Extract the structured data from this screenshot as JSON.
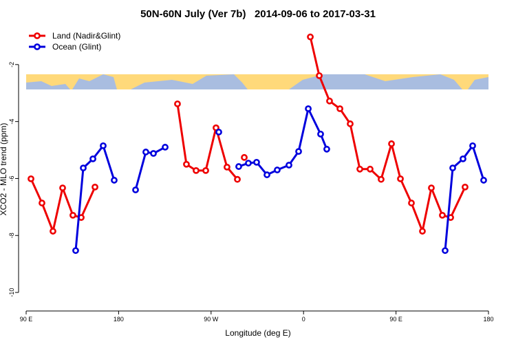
{
  "chart_data": {
    "type": "line",
    "title": "50N-60N July (Ver 7b)   2014-09-06 to 2017-03-31",
    "x_label": "Longitude (deg E)",
    "y_label": "XCO2 - MLO trend (ppm)",
    "xlim": [
      90,
      540
    ],
    "xticks": [
      {
        "value": 90,
        "label": "90 E"
      },
      {
        "value": 180,
        "label": "180"
      },
      {
        "value": 270,
        "label": "90 W"
      },
      {
        "value": 360,
        "label": "0"
      },
      {
        "value": 450,
        "label": "90 E"
      },
      {
        "value": 540,
        "label": "180"
      }
    ],
    "ylim": [
      -10.65,
      -0.7
    ],
    "yticks": [
      -2,
      -4,
      -6,
      -8,
      -10
    ],
    "legend": "top-left",
    "series": [
      {
        "name": "Land (Nadir&Glint)",
        "color": "#ee0000",
        "x": [
          94.7,
          105.4,
          116.1,
          125.5,
          135.5,
          143.6,
          157,
          null,
          237.3,
          246,
          255.4,
          264.8,
          274.8,
          285.5,
          295.6,
          null,
          302.3,
          null,
          366.6,
          375.3,
          385.3,
          395.4,
          405.4,
          414.8,
          424.8,
          435.5,
          445.6,
          454.3,
          465,
          475.7,
          484.4,
          495.1,
          503.2,
          517.2
        ],
        "values": [
          -6.01,
          -6.86,
          -7.85,
          -6.33,
          -7.29,
          -7.37,
          -6.3,
          null,
          -3.38,
          -5.5,
          -5.72,
          -5.72,
          -4.22,
          -5.6,
          -6.03,
          null,
          -5.26,
          null,
          -1.03,
          -2.39,
          -3.28,
          -3.55,
          -4.08,
          -5.67,
          -5.67,
          -6.03,
          -4.78,
          -6.01,
          -6.86,
          -7.85,
          -6.33,
          -7.29,
          -7.37,
          -6.3
        ]
      },
      {
        "name": "Ocean (Glint)",
        "color": "#0000dd",
        "x": [
          138.2,
          145.6,
          155,
          165,
          175.7,
          null,
          196.5,
          206.5,
          213.9,
          225.3,
          null,
          277.5,
          null,
          296.9,
          306.3,
          314.3,
          324.4,
          334.4,
          345.8,
          355.2,
          364.6,
          376.6,
          382.6,
          null,
          497.8,
          505.2,
          515.2,
          524.6,
          535.3
        ],
        "values": [
          -8.53,
          -5.63,
          -5.31,
          -4.85,
          -6.06,
          null,
          -6.4,
          -5.07,
          -5.12,
          -4.9,
          null,
          -4.37,
          null,
          -5.58,
          -5.46,
          -5.43,
          -5.87,
          -5.7,
          -5.53,
          -5.05,
          -3.55,
          -4.44,
          -4.97,
          null,
          -8.53,
          -5.63,
          -5.31,
          -4.85,
          -6.06
        ]
      }
    ]
  }
}
